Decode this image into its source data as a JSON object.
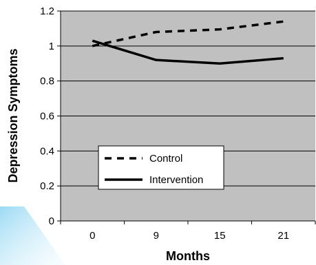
{
  "chart_data": {
    "type": "line",
    "title": "",
    "xlabel": "Months",
    "ylabel": "Depression Symptoms",
    "categories": [
      "0",
      "9",
      "15",
      "21"
    ],
    "ylim": [
      0,
      1.2
    ],
    "yticks": [
      "0",
      "0.2",
      "0.4",
      "0.6",
      "0.8",
      "1",
      "1.2"
    ],
    "grid": "horizontal",
    "plot_background": "#c0c0c0",
    "legend_position": "lower-left",
    "series": [
      {
        "name": "Control",
        "values": [
          1.0,
          1.08,
          1.095,
          1.14
        ],
        "dash": "dashed",
        "color": "#000000"
      },
      {
        "name": "Intervention",
        "values": [
          1.03,
          0.92,
          0.9,
          0.93
        ],
        "dash": "solid",
        "color": "#000000"
      }
    ]
  }
}
